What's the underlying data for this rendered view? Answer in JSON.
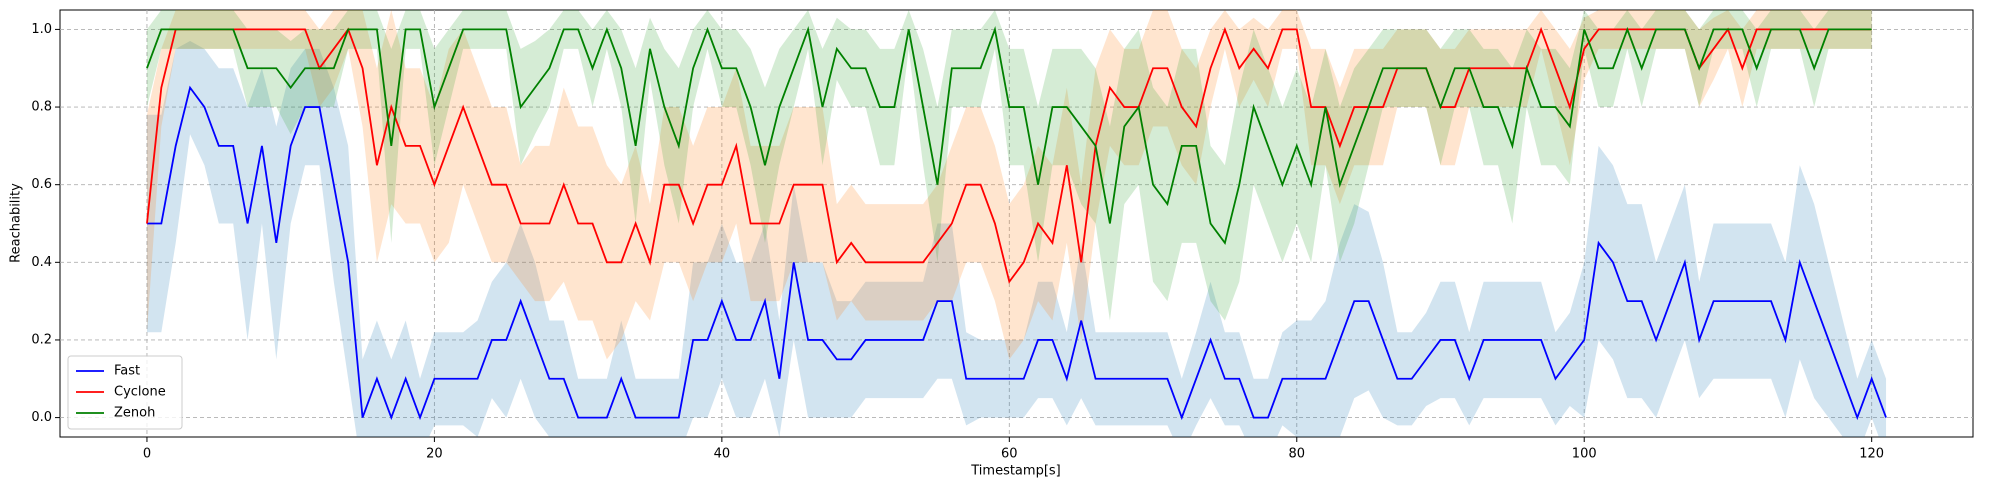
{
  "chart_data": {
    "type": "line",
    "x_label": "Timestamp[s]",
    "y_label": "Reachability",
    "xlim": [
      -6.05,
      127.05
    ],
    "ylim": [
      -0.05,
      1.05
    ],
    "xticks": [
      0,
      20,
      40,
      60,
      80,
      100,
      120
    ],
    "yticks": [
      {
        "value": 0,
        "label": "0.0"
      },
      {
        "value": 0.2,
        "label": "0.2"
      },
      {
        "value": 0.4,
        "label": "0.4"
      },
      {
        "value": 0.6,
        "label": "0.6"
      },
      {
        "value": 0.8,
        "label": "0.8"
      },
      {
        "value": 1,
        "label": "1.0"
      }
    ],
    "grid": true,
    "legend": "lower left",
    "x": [
      0,
      1,
      2,
      3,
      4,
      5,
      6,
      7,
      8,
      9,
      10,
      11,
      12,
      13,
      14,
      15,
      16,
      17,
      18,
      19,
      20,
      21,
      22,
      23,
      24,
      25,
      26,
      27,
      28,
      29,
      30,
      31,
      32,
      33,
      34,
      35,
      36,
      37,
      38,
      39,
      40,
      41,
      42,
      43,
      44,
      45,
      46,
      47,
      48,
      49,
      50,
      51,
      52,
      53,
      54,
      55,
      56,
      57,
      58,
      59,
      60,
      61,
      62,
      63,
      64,
      65,
      66,
      67,
      68,
      69,
      70,
      71,
      72,
      73,
      74,
      75,
      76,
      77,
      78,
      79,
      80,
      81,
      82,
      83,
      84,
      85,
      86,
      87,
      88,
      89,
      90,
      91,
      92,
      93,
      94,
      95,
      96,
      97,
      98,
      99,
      100,
      101,
      102,
      103,
      104,
      105,
      106,
      107,
      108,
      109,
      110,
      111,
      112,
      113,
      114,
      115,
      116,
      117,
      118,
      119,
      120,
      121
    ],
    "series": [
      {
        "name": "Fast",
        "color": "#0000ff",
        "band_color": "#1f77b4",
        "values": [
          0.5,
          0.5,
          0.7,
          0.85,
          0.8,
          0.7,
          0.7,
          0.5,
          0.7,
          0.45,
          0.7,
          0.8,
          0.8,
          0.6,
          0.4,
          0,
          0.1,
          0,
          0.1,
          0,
          0.1,
          0.1,
          0.1,
          0.1,
          0.2,
          0.2,
          0.3,
          0.2,
          0.1,
          0.1,
          0,
          0,
          0,
          0.1,
          0,
          0,
          0,
          0,
          0.2,
          0.2,
          0.3,
          0.2,
          0.2,
          0.3,
          0.1,
          0.4,
          0.2,
          0.2,
          0.15,
          0.15,
          0.2,
          0.2,
          0.2,
          0.2,
          0.2,
          0.3,
          0.3,
          0.1,
          0.1,
          0.1,
          0.1,
          0.1,
          0.2,
          0.2,
          0.1,
          0.25,
          0.1,
          0.1,
          0.1,
          0.1,
          0.1,
          0.1,
          0,
          0.1,
          0.2,
          0.1,
          0.1,
          0,
          0,
          0.1,
          0.1,
          0.1,
          0.1,
          0.2,
          0.3,
          0.3,
          0.2,
          0.1,
          0.1,
          0.15,
          0.2,
          0.2,
          0.1,
          0.2,
          0.2,
          0.2,
          0.2,
          0.2,
          0.1,
          0.15,
          0.2,
          0.45,
          0.4,
          0.3,
          0.3,
          0.2,
          0.3,
          0.4,
          0.2,
          0.3,
          0.3,
          0.3,
          0.3,
          0.3,
          0.2,
          0.4,
          0.3,
          0.2,
          0.1,
          0,
          0.1,
          0
        ],
        "error": [
          0.28,
          0.28,
          0.25,
          0.12,
          0.15,
          0.2,
          0.2,
          0.3,
          0.2,
          0.3,
          0.2,
          0.15,
          0.15,
          0.25,
          0.3,
          0.15,
          0.15,
          0.15,
          0.15,
          0.1,
          0.12,
          0.12,
          0.12,
          0.15,
          0.15,
          0.2,
          0.2,
          0.2,
          0.15,
          0.15,
          0.1,
          0.1,
          0.1,
          0.15,
          0.1,
          0.1,
          0.1,
          0.1,
          0.2,
          0.2,
          0.2,
          0.2,
          0.2,
          0.2,
          0.15,
          0.2,
          0.2,
          0.2,
          0.15,
          0.15,
          0.15,
          0.15,
          0.15,
          0.15,
          0.15,
          0.2,
          0.2,
          0.12,
          0.1,
          0.1,
          0.1,
          0.1,
          0.15,
          0.15,
          0.12,
          0.2,
          0.12,
          0.12,
          0.12,
          0.12,
          0.12,
          0.12,
          0.1,
          0.12,
          0.15,
          0.12,
          0.12,
          0.1,
          0.1,
          0.12,
          0.15,
          0.15,
          0.2,
          0.25,
          0.25,
          0.23,
          0.2,
          0.12,
          0.12,
          0.12,
          0.15,
          0.15,
          0.12,
          0.15,
          0.15,
          0.15,
          0.15,
          0.15,
          0.12,
          0.12,
          0.2,
          0.25,
          0.25,
          0.25,
          0.25,
          0.2,
          0.2,
          0.2,
          0.15,
          0.2,
          0.2,
          0.2,
          0.2,
          0.2,
          0.2,
          0.25,
          0.25,
          0.2,
          0.15,
          0.1,
          0.1,
          0.1
        ]
      },
      {
        "name": "Cyclone",
        "color": "#ff0000",
        "band_color": "#ff7f0e",
        "values": [
          0.5,
          0.85,
          1,
          1,
          1,
          1,
          1,
          1,
          1,
          1,
          1,
          1,
          0.9,
          0.95,
          1,
          0.9,
          0.65,
          0.8,
          0.7,
          0.7,
          0.6,
          0.7,
          0.8,
          0.7,
          0.6,
          0.6,
          0.5,
          0.5,
          0.5,
          0.6,
          0.5,
          0.5,
          0.4,
          0.4,
          0.5,
          0.4,
          0.6,
          0.6,
          0.5,
          0.6,
          0.6,
          0.7,
          0.5,
          0.5,
          0.5,
          0.6,
          0.6,
          0.6,
          0.4,
          0.45,
          0.4,
          0.4,
          0.4,
          0.4,
          0.4,
          0.45,
          0.5,
          0.6,
          0.6,
          0.5,
          0.35,
          0.4,
          0.5,
          0.45,
          0.65,
          0.4,
          0.7,
          0.85,
          0.8,
          0.8,
          0.9,
          0.9,
          0.8,
          0.75,
          0.9,
          1,
          0.9,
          0.95,
          0.9,
          1,
          1,
          0.8,
          0.8,
          0.7,
          0.8,
          0.8,
          0.8,
          0.9,
          0.9,
          0.9,
          0.8,
          0.8,
          0.9,
          0.9,
          0.9,
          0.9,
          0.9,
          1,
          0.9,
          0.8,
          0.95,
          1,
          1,
          1,
          1,
          1,
          1,
          1,
          0.9,
          0.95,
          1,
          0.9,
          1,
          1,
          1,
          1,
          1,
          1,
          1,
          1,
          1,
          null
        ],
        "error": [
          0.28,
          0.1,
          0.05,
          0.05,
          0.05,
          0.05,
          0.05,
          0.05,
          0.05,
          0.05,
          0.05,
          0.05,
          0.1,
          0.1,
          0.05,
          0.15,
          0.25,
          0.25,
          0.2,
          0.2,
          0.2,
          0.25,
          0.2,
          0.2,
          0.2,
          0.2,
          0.15,
          0.2,
          0.2,
          0.25,
          0.25,
          0.25,
          0.25,
          0.2,
          0.2,
          0.15,
          0.2,
          0.2,
          0.2,
          0.2,
          0.2,
          0.2,
          0.2,
          0.2,
          0.2,
          0.2,
          0.2,
          0.2,
          0.15,
          0.15,
          0.15,
          0.15,
          0.15,
          0.15,
          0.15,
          0.15,
          0.2,
          0.2,
          0.2,
          0.2,
          0.2,
          0.2,
          0.2,
          0.2,
          0.2,
          0.2,
          0.2,
          0.15,
          0.15,
          0.15,
          0.15,
          0.15,
          0.15,
          0.15,
          0.1,
          0.05,
          0.1,
          0.08,
          0.1,
          0.05,
          0.05,
          0.15,
          0.15,
          0.15,
          0.15,
          0.15,
          0.15,
          0.1,
          0.1,
          0.1,
          0.15,
          0.15,
          0.1,
          0.1,
          0.1,
          0.1,
          0.1,
          0.05,
          0.1,
          0.15,
          0.08,
          0.05,
          0.05,
          0.05,
          0.05,
          0.05,
          0.05,
          0.05,
          0.1,
          0.08,
          0.05,
          0.1,
          0.05,
          0.05,
          0.05,
          0.05,
          0.05,
          0.05,
          0.05,
          0.05,
          0.05,
          null
        ]
      },
      {
        "name": "Zenoh",
        "color": "#008000",
        "band_color": "#2ca02c",
        "values": [
          0.9,
          1,
          1,
          1,
          1,
          1,
          1,
          0.9,
          0.9,
          0.9,
          0.85,
          0.9,
          0.9,
          0.9,
          1,
          1,
          1,
          0.7,
          1,
          1,
          0.8,
          0.9,
          1,
          1,
          1,
          1,
          0.8,
          0.85,
          0.9,
          1,
          1,
          0.9,
          1,
          0.9,
          0.7,
          0.95,
          0.8,
          0.7,
          0.9,
          1,
          0.9,
          0.9,
          0.8,
          0.65,
          0.8,
          0.9,
          1,
          0.8,
          0.95,
          0.9,
          0.9,
          0.8,
          0.8,
          1,
          0.8,
          0.6,
          0.9,
          0.9,
          0.9,
          1,
          0.8,
          0.8,
          0.6,
          0.8,
          0.8,
          0.75,
          0.7,
          0.5,
          0.75,
          0.8,
          0.6,
          0.55,
          0.7,
          0.7,
          0.5,
          0.45,
          0.6,
          0.8,
          0.7,
          0.6,
          0.7,
          0.6,
          0.8,
          0.6,
          0.7,
          0.8,
          0.9,
          0.9,
          0.9,
          0.9,
          0.8,
          0.9,
          0.9,
          0.8,
          0.8,
          0.7,
          0.9,
          0.8,
          0.8,
          0.75,
          1,
          0.9,
          0.9,
          1,
          0.9,
          1,
          1,
          1,
          0.9,
          1,
          1,
          1,
          0.9,
          1,
          1,
          1,
          0.9,
          1,
          1,
          1,
          1,
          null
        ],
        "error": [
          0.1,
          0.05,
          0.05,
          0.05,
          0.05,
          0.05,
          0.05,
          0.1,
          0.1,
          0.1,
          0.12,
          0.1,
          0.1,
          0.1,
          0.05,
          0.05,
          0.05,
          0.25,
          0.05,
          0.05,
          0.15,
          0.1,
          0.05,
          0.05,
          0.05,
          0.05,
          0.15,
          0.12,
          0.1,
          0.05,
          0.05,
          0.1,
          0.05,
          0.1,
          0.2,
          0.08,
          0.15,
          0.2,
          0.1,
          0.05,
          0.1,
          0.1,
          0.15,
          0.2,
          0.15,
          0.1,
          0.05,
          0.15,
          0.08,
          0.1,
          0.1,
          0.15,
          0.15,
          0.05,
          0.15,
          0.2,
          0.1,
          0.1,
          0.1,
          0.05,
          0.15,
          0.15,
          0.2,
          0.15,
          0.15,
          0.2,
          0.2,
          0.25,
          0.2,
          0.2,
          0.25,
          0.25,
          0.25,
          0.25,
          0.2,
          0.2,
          0.25,
          0.2,
          0.2,
          0.2,
          0.2,
          0.2,
          0.15,
          0.2,
          0.2,
          0.15,
          0.1,
          0.1,
          0.1,
          0.1,
          0.15,
          0.1,
          0.1,
          0.15,
          0.15,
          0.2,
          0.1,
          0.15,
          0.15,
          0.15,
          0.05,
          0.1,
          0.1,
          0.05,
          0.1,
          0.05,
          0.05,
          0.05,
          0.1,
          0.05,
          0.05,
          0.05,
          0.1,
          0.05,
          0.05,
          0.05,
          0.1,
          0.05,
          0.05,
          0.05,
          0.05,
          null
        ]
      }
    ]
  }
}
